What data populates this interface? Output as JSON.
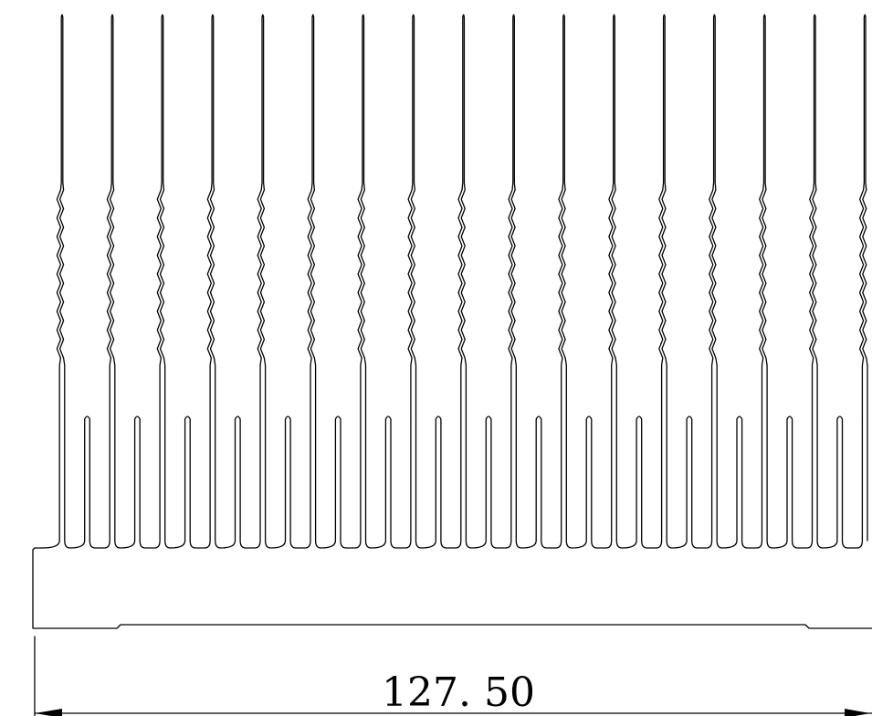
{
  "drawing": {
    "subject": "heat-sink-extrusion-profile",
    "line_color": "#000000",
    "background_color": "#ffffff",
    "tall_fin_count": 17,
    "short_fin_count": 16,
    "dimension": {
      "value_text": "127. 50",
      "orientation": "horizontal"
    }
  }
}
